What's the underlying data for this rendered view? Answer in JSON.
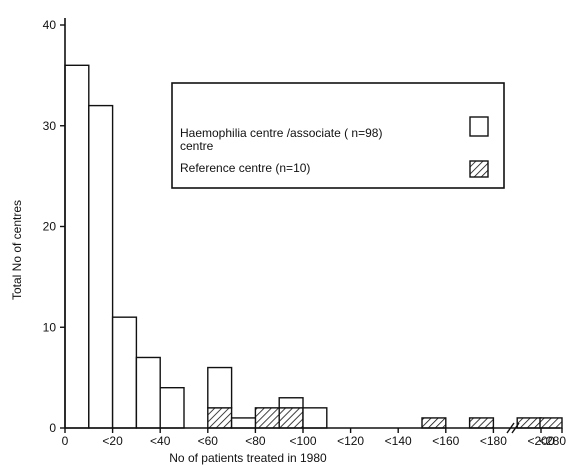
{
  "chart_data": {
    "type": "bar",
    "stacked": true,
    "xlabel": "No of patients treated in 1980",
    "ylabel": "Total No of centres",
    "ylim": [
      0,
      40
    ],
    "y_ticks": [
      0,
      10,
      20,
      30,
      40
    ],
    "x_ticks": [
      "0",
      "<20",
      "<40",
      "<60",
      "<80",
      "<100",
      "<120",
      "<140",
      "<160",
      "<180",
      "<200",
      "<280"
    ],
    "axis_break": "between <200 and <280",
    "bin_width": 10,
    "series": [
      {
        "name": "Reference centre (n=10)",
        "pattern": "hatched",
        "x": [
          60,
          80,
          90,
          150,
          170,
          190,
          270
        ],
        "values": [
          2,
          2,
          2,
          1,
          1,
          1,
          1
        ]
      },
      {
        "name": "Haemophilia centre /associate (n=98) centre",
        "pattern": "open",
        "x": [
          0,
          10,
          20,
          30,
          40,
          60,
          70,
          90,
          100
        ],
        "values": [
          36,
          32,
          11,
          7,
          4,
          4,
          1,
          1,
          2
        ]
      }
    ],
    "legend": {
      "placement": "top-right",
      "entries": [
        {
          "line1": "Haemophilia centre /associate ( n=98)",
          "line2": "centre",
          "pattern": "open"
        },
        {
          "line1": "Reference centre  (n=10)",
          "line2": "",
          "pattern": "hatched"
        }
      ]
    }
  }
}
